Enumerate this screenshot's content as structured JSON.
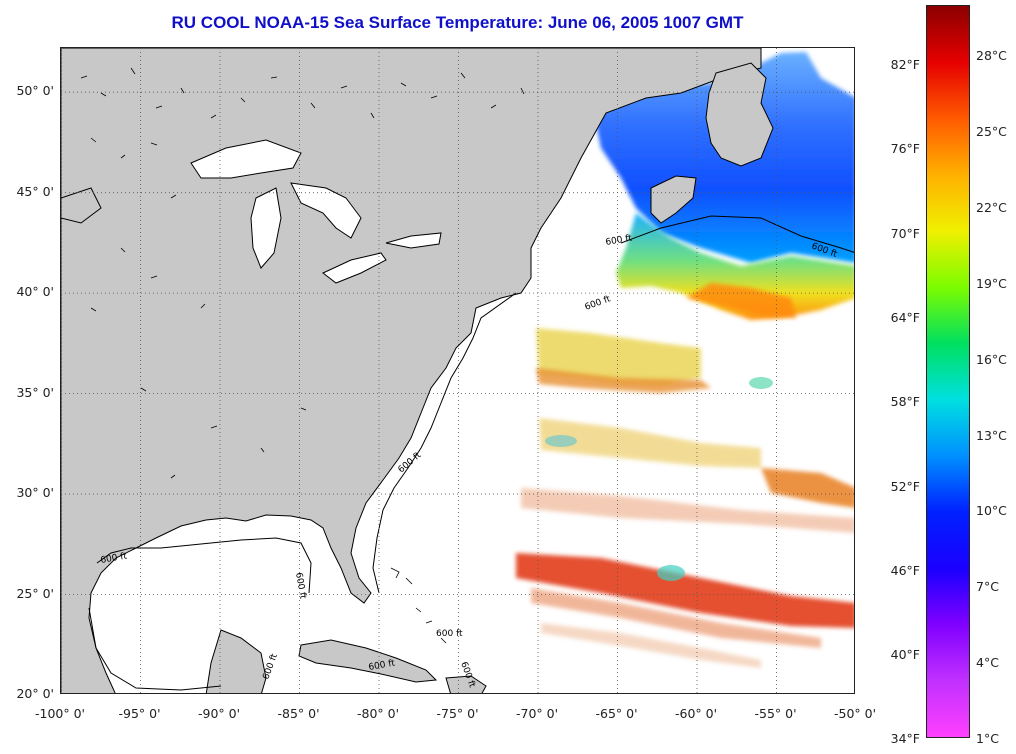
{
  "title": "RU COOL  NOAA-15  Sea Surface Temperature:  June 06, 2005 1007 GMT",
  "map": {
    "lat_labels": [
      "50° 0'",
      "45° 0'",
      "40° 0'",
      "35° 0'",
      "30° 0'",
      "25° 0'",
      "20° 0'"
    ],
    "lat_values": [
      50,
      45,
      40,
      35,
      30,
      25,
      20
    ],
    "lon_labels": [
      "-100° 0'",
      "-95° 0'",
      "-90° 0'",
      "-85° 0'",
      "-80° 0'",
      "-75° 0'",
      "-70° 0'",
      "-65° 0'",
      "-60° 0'",
      "-55° 0'",
      "-50° 0'"
    ],
    "lon_values": [
      -100,
      -95,
      -90,
      -85,
      -80,
      -75,
      -70,
      -65,
      -60,
      -55,
      -50
    ],
    "lon_range": [
      -100,
      -50
    ],
    "lat_range": [
      20,
      52.2
    ],
    "grid": "dotted",
    "isobath_labels": [
      "600 ft",
      "600 ft",
      "600 ft",
      "600 ft",
      "600 ft",
      "600 ft",
      "600 ft",
      "600 ft",
      "600 ft",
      "600 ft"
    ],
    "colors": {
      "land": "#c8c8c8",
      "ocean": "#ffffff",
      "grid": "#555555",
      "title": "#1010c8"
    }
  },
  "colorbar": {
    "fahrenheit_labels": [
      "82°F",
      "76°F",
      "70°F",
      "64°F",
      "58°F",
      "52°F",
      "46°F",
      "40°F",
      "34°F"
    ],
    "celsius_labels": [
      "28°C",
      "25°C",
      "22°C",
      "19°C",
      "16°C",
      "13°C",
      "10°C",
      "7°C",
      "4°C",
      "1°C"
    ],
    "range_c": [
      0,
      30
    ],
    "stops": [
      "#8b0000",
      "#e60000",
      "#ff5a00",
      "#ffb000",
      "#f0f000",
      "#7cfc00",
      "#00e060",
      "#00e0e0",
      "#0090ff",
      "#0020ff",
      "#1a00ff",
      "#8000ff",
      "#c030ff",
      "#ff40ff"
    ]
  }
}
